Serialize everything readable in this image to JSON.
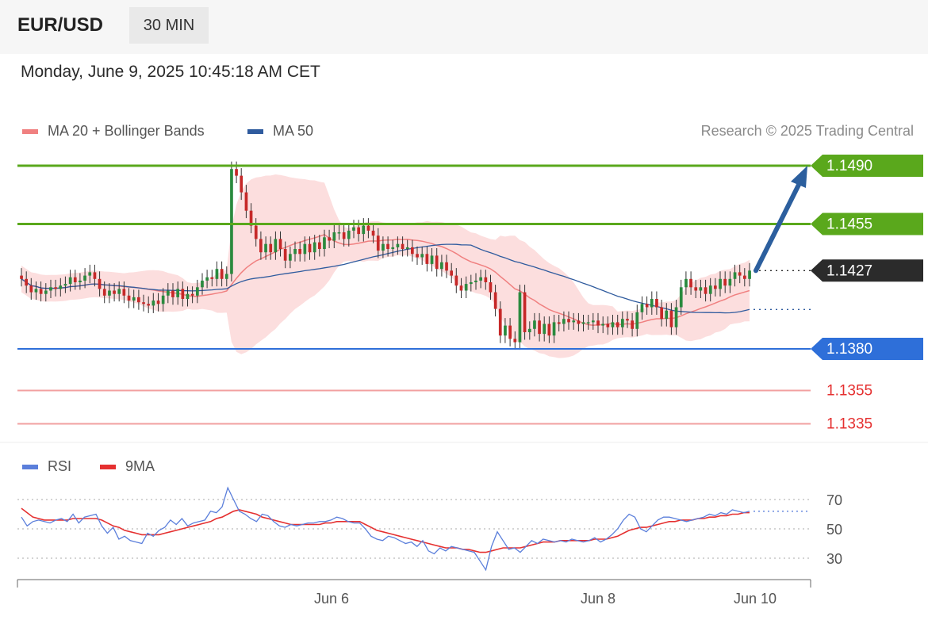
{
  "header": {
    "symbol": "EUR/USD",
    "timeframe": "30 MIN"
  },
  "datetime": "Monday, June 9, 2025 10:45:18 AM CET",
  "legend": {
    "ma20_label": "MA 20 + Bollinger Bands",
    "ma50_label": "MA 50",
    "copyright": "Research © 2025 Trading Central"
  },
  "rsi_legend": {
    "rsi_label": "RSI",
    "ma9_label": "9MA"
  },
  "colors": {
    "ma20": "#f08080",
    "ma50": "#2f5b9e",
    "bb_fill": "#fcdede",
    "bull": "#2a8a3e",
    "bear": "#c62828",
    "resistance": "#5aa81c",
    "support": "#2e6fd9",
    "support2": "#f2a0a0",
    "current": "#2b2b2b",
    "arrow": "#2c5f9e",
    "rsi": "#5b7fdb",
    "rsi_ma": "#e53030"
  },
  "chart_data": {
    "type": "candlestick",
    "instrument": "EUR/USD",
    "timeframe": "30 MIN",
    "ylim": [
      1.1325,
      1.15
    ],
    "levels": [
      {
        "value": 1.149,
        "label": "1.1490",
        "kind": "resistance"
      },
      {
        "value": 1.1455,
        "label": "1.1455",
        "kind": "resistance"
      },
      {
        "value": 1.1427,
        "label": "1.1427",
        "kind": "current"
      },
      {
        "value": 1.138,
        "label": "1.1380",
        "kind": "support"
      },
      {
        "value": 1.1355,
        "label": "1.1355",
        "kind": "support"
      },
      {
        "value": 1.1335,
        "label": "1.1335",
        "kind": "support"
      }
    ],
    "x_ticks": [
      "Jun 6",
      "Jun 8",
      "Jun 10"
    ],
    "closes": [
      1.1422,
      1.1418,
      1.1414,
      1.1416,
      1.1413,
      1.1415,
      1.1417,
      1.1416,
      1.1418,
      1.1419,
      1.1423,
      1.142,
      1.1421,
      1.1424,
      1.1426,
      1.1422,
      1.1416,
      1.1412,
      1.1415,
      1.1413,
      1.1416,
      1.1412,
      1.1409,
      1.1411,
      1.1408,
      1.1407,
      1.1406,
      1.1409,
      1.1407,
      1.1412,
      1.1415,
      1.1411,
      1.1416,
      1.141,
      1.1413,
      1.1412,
      1.1417,
      1.1421,
      1.1423,
      1.1422,
      1.1428,
      1.1422,
      1.1425,
      1.1488,
      1.1484,
      1.1474,
      1.1463,
      1.1454,
      1.1446,
      1.1438,
      1.1443,
      1.1438,
      1.1446,
      1.144,
      1.1433,
      1.1437,
      1.144,
      1.1437,
      1.1443,
      1.1438,
      1.1444,
      1.144,
      1.1447,
      1.1445,
      1.145,
      1.145,
      1.1446,
      1.1451,
      1.1453,
      1.1449,
      1.1454,
      1.1451,
      1.1448,
      1.1439,
      1.1443,
      1.144,
      1.1441,
      1.1443,
      1.144,
      1.1441,
      1.1437,
      1.1435,
      1.1437,
      1.1431,
      1.1436,
      1.1428,
      1.1432,
      1.1427,
      1.1424,
      1.1418,
      1.1415,
      1.1419,
      1.142,
      1.1421,
      1.1423,
      1.142,
      1.1414,
      1.1404,
      1.1388,
      1.1394,
      1.1386,
      1.1384,
      1.1414,
      1.139,
      1.1392,
      1.1397,
      1.1389,
      1.1395,
      1.1388,
      1.1396,
      1.1395,
      1.1398,
      1.1396,
      1.1397,
      1.1395,
      1.1396,
      1.1396,
      1.1397,
      1.1394,
      1.1395,
      1.1393,
      1.1396,
      1.1393,
      1.1398,
      1.1397,
      1.1392,
      1.1402,
      1.1407,
      1.1405,
      1.141,
      1.1405,
      1.1398,
      1.1403,
      1.1393,
      1.1405,
      1.1417,
      1.1422,
      1.1417,
      1.1415,
      1.1417,
      1.1413,
      1.1418,
      1.1416,
      1.1422,
      1.1418,
      1.1422,
      1.1426,
      1.1424,
      1.1422,
      1.1427
    ]
  },
  "rsi_data": {
    "levels": [
      70,
      50,
      30
    ],
    "level_labels": [
      "70",
      "50",
      "30"
    ],
    "rsi_values": [
      58,
      52,
      55,
      56,
      55,
      54,
      56,
      57,
      55,
      60,
      54,
      58,
      59,
      60,
      52,
      47,
      51,
      43,
      45,
      42,
      41,
      40,
      47,
      45,
      49,
      51,
      56,
      53,
      57,
      52,
      54,
      55,
      56,
      62,
      61,
      65,
      78,
      70,
      62,
      60,
      57,
      55,
      60,
      59,
      55,
      52,
      51,
      53,
      52,
      53,
      54,
      54,
      55,
      55,
      56,
      58,
      57,
      55,
      54,
      54,
      50,
      45,
      43,
      42,
      45,
      44,
      42,
      40,
      41,
      38,
      42,
      35,
      33,
      37,
      35,
      38,
      37,
      36,
      35,
      34,
      28,
      22,
      38,
      48,
      42,
      36,
      37,
      34,
      38,
      42,
      40,
      43,
      42,
      41,
      42,
      41,
      43,
      42,
      41,
      42,
      44,
      41,
      43,
      46,
      50,
      56,
      60,
      58,
      50,
      48,
      52,
      56,
      58,
      58,
      57,
      56,
      55,
      56,
      57,
      58,
      60,
      59,
      61,
      60,
      63,
      62,
      61,
      62
    ],
    "ma9_values": [
      64,
      61,
      58,
      57,
      56,
      56,
      56,
      56,
      56,
      57,
      57,
      57,
      57,
      57,
      56,
      54,
      52,
      51,
      49,
      48,
      47,
      46,
      46,
      46,
      46,
      47,
      48,
      49,
      50,
      51,
      52,
      53,
      54,
      55,
      57,
      58,
      60,
      62,
      63,
      62,
      61,
      60,
      58,
      57,
      56,
      55,
      54,
      53,
      53,
      53,
      53,
      53,
      53,
      54,
      54,
      55,
      55,
      55,
      55,
      55,
      53,
      51,
      49,
      48,
      47,
      46,
      45,
      44,
      43,
      42,
      41,
      40,
      39,
      38,
      37,
      37,
      37,
      36,
      36,
      35,
      34,
      34,
      35,
      36,
      37,
      37,
      37,
      37,
      38,
      39,
      40,
      41,
      41,
      41,
      42,
      42,
      42,
      42,
      42,
      42,
      43,
      43,
      43,
      44,
      45,
      47,
      49,
      50,
      51,
      51,
      52,
      53,
      54,
      55,
      55,
      56,
      56,
      56,
      57,
      57,
      58,
      58,
      59,
      59,
      60,
      60,
      61,
      61
    ]
  }
}
